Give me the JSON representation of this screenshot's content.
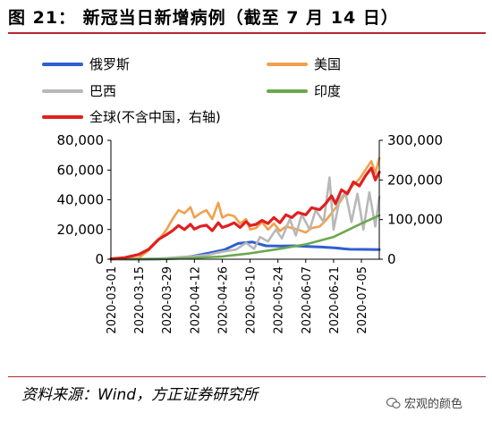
{
  "header": {
    "title": "图 21： 新冠当日新增病例（截至 7 月 14 日）"
  },
  "footer": {
    "source": "资料来源：Wind，方正证券研究所",
    "watermark": "宏观的颜色"
  },
  "chart_data": {
    "type": "line",
    "title": "新冠当日新增病例（截至 7 月 14 日）",
    "x_tick_labels": [
      "2020-03-01",
      "2020-03-15",
      "2020-03-29",
      "2020-04-12",
      "2020-04-26",
      "2020-05-10",
      "2020-05-24",
      "2020-06-07",
      "2020-06-21",
      "2020-07-05"
    ],
    "x_range": [
      "2020-03-01",
      "2020-07-14"
    ],
    "y_left": {
      "range": [
        0,
        80000
      ],
      "ticks": [
        "0",
        "20,000",
        "40,000",
        "60,000",
        "80,000"
      ]
    },
    "y_right": {
      "range": [
        0,
        300000
      ],
      "ticks": [
        "0",
        "100,000",
        "200,000",
        "300,000"
      ],
      "note": "右轴"
    },
    "grid": false,
    "legend_placement": "top",
    "series": [
      {
        "name": "俄罗斯",
        "axis": "left",
        "color": "#2f5fd0",
        "points": [
          [
            "2020-03-01",
            0
          ],
          [
            "2020-03-15",
            20
          ],
          [
            "2020-03-25",
            200
          ],
          [
            "2020-04-05",
            900
          ],
          [
            "2020-04-12",
            2200
          ],
          [
            "2020-04-20",
            4300
          ],
          [
            "2020-04-27",
            6300
          ],
          [
            "2020-05-04",
            10600
          ],
          [
            "2020-05-11",
            11600
          ],
          [
            "2020-05-18",
            9000
          ],
          [
            "2020-05-25",
            8900
          ],
          [
            "2020-06-01",
            9000
          ],
          [
            "2020-06-08",
            8600
          ],
          [
            "2020-06-15",
            8200
          ],
          [
            "2020-06-22",
            7600
          ],
          [
            "2020-06-29",
            6700
          ],
          [
            "2020-07-06",
            6600
          ],
          [
            "2020-07-14",
            6500
          ]
        ]
      },
      {
        "name": "美国",
        "axis": "left",
        "color": "#f2a04c",
        "points": [
          [
            "2020-03-01",
            0
          ],
          [
            "2020-03-08",
            200
          ],
          [
            "2020-03-15",
            800
          ],
          [
            "2020-03-20",
            6000
          ],
          [
            "2020-03-25",
            13000
          ],
          [
            "2020-03-29",
            20000
          ],
          [
            "2020-04-01",
            27000
          ],
          [
            "2020-04-04",
            33000
          ],
          [
            "2020-04-07",
            31000
          ],
          [
            "2020-04-10",
            35000
          ],
          [
            "2020-04-12",
            28000
          ],
          [
            "2020-04-15",
            31000
          ],
          [
            "2020-04-18",
            33000
          ],
          [
            "2020-04-21",
            27000
          ],
          [
            "2020-04-24",
            38000
          ],
          [
            "2020-04-26",
            28000
          ],
          [
            "2020-04-29",
            30000
          ],
          [
            "2020-05-02",
            29000
          ],
          [
            "2020-05-05",
            24000
          ],
          [
            "2020-05-08",
            27000
          ],
          [
            "2020-05-10",
            20000
          ],
          [
            "2020-05-13",
            21000
          ],
          [
            "2020-05-16",
            25000
          ],
          [
            "2020-05-19",
            20000
          ],
          [
            "2020-05-22",
            24000
          ],
          [
            "2020-05-25",
            19000
          ],
          [
            "2020-05-28",
            22000
          ],
          [
            "2020-05-31",
            21000
          ],
          [
            "2020-06-03",
            20000
          ],
          [
            "2020-06-07",
            18000
          ],
          [
            "2020-06-10",
            21000
          ],
          [
            "2020-06-14",
            22000
          ],
          [
            "2020-06-17",
            26000
          ],
          [
            "2020-06-20",
            31000
          ],
          [
            "2020-06-24",
            38000
          ],
          [
            "2020-06-27",
            44000
          ],
          [
            "2020-07-01",
            50000
          ],
          [
            "2020-07-04",
            54000
          ],
          [
            "2020-07-07",
            60000
          ],
          [
            "2020-07-10",
            66000
          ],
          [
            "2020-07-12",
            58000
          ],
          [
            "2020-07-14",
            68000
          ]
        ]
      },
      {
        "name": "巴西",
        "axis": "left",
        "color": "#b8b8b8",
        "points": [
          [
            "2020-03-01",
            0
          ],
          [
            "2020-03-20",
            200
          ],
          [
            "2020-03-29",
            700
          ],
          [
            "2020-04-05",
            1500
          ],
          [
            "2020-04-12",
            2000
          ],
          [
            "2020-04-19",
            3000
          ],
          [
            "2020-04-26",
            5000
          ],
          [
            "2020-05-03",
            6500
          ],
          [
            "2020-05-08",
            11000
          ],
          [
            "2020-05-12",
            7000
          ],
          [
            "2020-05-15",
            15000
          ],
          [
            "2020-05-19",
            12000
          ],
          [
            "2020-05-23",
            20000
          ],
          [
            "2020-05-26",
            14000
          ],
          [
            "2020-05-30",
            27000
          ],
          [
            "2020-06-02",
            16000
          ],
          [
            "2020-06-05",
            30000
          ],
          [
            "2020-06-09",
            20000
          ],
          [
            "2020-06-12",
            33000
          ],
          [
            "2020-06-16",
            25000
          ],
          [
            "2020-06-19",
            55000
          ],
          [
            "2020-06-21",
            20000
          ],
          [
            "2020-06-24",
            40000
          ],
          [
            "2020-06-27",
            45000
          ],
          [
            "2020-06-30",
            25000
          ],
          [
            "2020-07-03",
            44000
          ],
          [
            "2020-07-06",
            20000
          ],
          [
            "2020-07-09",
            45000
          ],
          [
            "2020-07-12",
            22000
          ],
          [
            "2020-07-14",
            42000
          ]
        ]
      },
      {
        "name": "印度",
        "axis": "left",
        "color": "#6aa84f",
        "points": [
          [
            "2020-03-01",
            0
          ],
          [
            "2020-03-29",
            100
          ],
          [
            "2020-04-12",
            900
          ],
          [
            "2020-04-26",
            1800
          ],
          [
            "2020-05-10",
            4000
          ],
          [
            "2020-05-24",
            6800
          ],
          [
            "2020-06-07",
            10000
          ],
          [
            "2020-06-21",
            15000
          ],
          [
            "2020-07-05",
            24000
          ],
          [
            "2020-07-10",
            27000
          ],
          [
            "2020-07-14",
            29500
          ]
        ]
      },
      {
        "name": "全球(不含中国，右轴)",
        "axis": "right",
        "color": "#e02020",
        "points": [
          [
            "2020-03-01",
            1000
          ],
          [
            "2020-03-08",
            4000
          ],
          [
            "2020-03-15",
            12000
          ],
          [
            "2020-03-20",
            25000
          ],
          [
            "2020-03-25",
            50000
          ],
          [
            "2020-03-29",
            62000
          ],
          [
            "2020-04-01",
            72000
          ],
          [
            "2020-04-04",
            85000
          ],
          [
            "2020-04-07",
            75000
          ],
          [
            "2020-04-10",
            88000
          ],
          [
            "2020-04-12",
            76000
          ],
          [
            "2020-04-15",
            83000
          ],
          [
            "2020-04-18",
            86000
          ],
          [
            "2020-04-21",
            72000
          ],
          [
            "2020-04-24",
            92000
          ],
          [
            "2020-04-26",
            80000
          ],
          [
            "2020-04-29",
            85000
          ],
          [
            "2020-05-02",
            92000
          ],
          [
            "2020-05-05",
            80000
          ],
          [
            "2020-05-08",
            95000
          ],
          [
            "2020-05-10",
            85000
          ],
          [
            "2020-05-13",
            88000
          ],
          [
            "2020-05-16",
            98000
          ],
          [
            "2020-05-19",
            90000
          ],
          [
            "2020-05-22",
            105000
          ],
          [
            "2020-05-25",
            92000
          ],
          [
            "2020-05-28",
            112000
          ],
          [
            "2020-05-31",
            105000
          ],
          [
            "2020-06-03",
            118000
          ],
          [
            "2020-06-07",
            112000
          ],
          [
            "2020-06-10",
            130000
          ],
          [
            "2020-06-14",
            125000
          ],
          [
            "2020-06-17",
            140000
          ],
          [
            "2020-06-20",
            160000
          ],
          [
            "2020-06-22",
            140000
          ],
          [
            "2020-06-25",
            175000
          ],
          [
            "2020-06-28",
            165000
          ],
          [
            "2020-07-01",
            195000
          ],
          [
            "2020-07-04",
            185000
          ],
          [
            "2020-07-07",
            210000
          ],
          [
            "2020-07-10",
            230000
          ],
          [
            "2020-07-12",
            200000
          ],
          [
            "2020-07-14",
            220000
          ]
        ]
      }
    ]
  }
}
